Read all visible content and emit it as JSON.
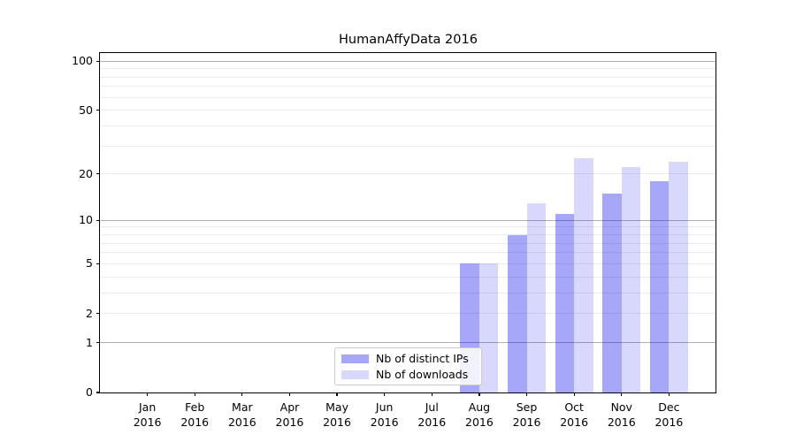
{
  "title": "HumanAffyData 2016",
  "chart_data": {
    "type": "bar",
    "title": "HumanAffyData 2016",
    "x_tick_months": [
      "Jan",
      "Feb",
      "Mar",
      "Apr",
      "May",
      "Jun",
      "Jul",
      "Aug",
      "Sep",
      "Oct",
      "Nov",
      "Dec"
    ],
    "x_tick_year": "2016",
    "series": [
      {
        "name": "Nb of distinct IPs",
        "color": "rgba(10,10,240,0.36)",
        "values": [
          0,
          0,
          0,
          0,
          0,
          0,
          0,
          5,
          8,
          11,
          15,
          18
        ]
      },
      {
        "name": "Nb of downloads",
        "color": "rgba(10,10,240,0.16)",
        "values": [
          0,
          0,
          0,
          0,
          0,
          0,
          0,
          5,
          13,
          25,
          22,
          24
        ]
      }
    ],
    "y_ticks": [
      0,
      1,
      2,
      5,
      10,
      20,
      50,
      100
    ],
    "y_scale": "log1p",
    "ylim": [
      0,
      112
    ],
    "grid": {
      "major_values": [
        1,
        10,
        100
      ],
      "minor_values": [
        2,
        3,
        4,
        5,
        6,
        7,
        8,
        9,
        20,
        30,
        40,
        50,
        60,
        70,
        80,
        90
      ],
      "major_color": "#b0b0b0",
      "minor_color": "#ebebeb"
    },
    "legend_position": "lower-center",
    "bar_width_fraction": 0.4
  },
  "legend": {
    "items": [
      {
        "label": "Nb of distinct IPs"
      },
      {
        "label": "Nb of downloads"
      }
    ]
  },
  "colors": {
    "distinct_ips_solid": "#a7a7fa",
    "downloads_solid": "#d8d8fb",
    "spine": "#000000",
    "background": "#ffffff"
  }
}
